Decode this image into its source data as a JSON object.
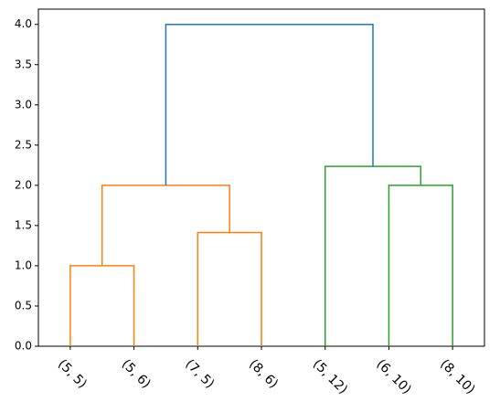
{
  "chart_data": {
    "type": "dendrogram",
    "categories": [
      "(5, 5)",
      "(5, 6)",
      "(7, 5)",
      "(8, 6)",
      "(5, 12)",
      "(6, 10)",
      "(8, 10)"
    ],
    "merges": [
      {
        "children": [
          0,
          1
        ],
        "height": 1.0,
        "color": "#ff7f0e"
      },
      {
        "children": [
          2,
          3
        ],
        "height": 1.414,
        "color": "#ff7f0e"
      },
      {
        "children": [
          7,
          8
        ],
        "height": 2.0,
        "color": "#ff7f0e"
      },
      {
        "children": [
          5,
          6
        ],
        "height": 2.0,
        "color": "#2ca02c"
      },
      {
        "children": [
          4,
          10
        ],
        "height": 2.236,
        "color": "#2ca02c"
      },
      {
        "children": [
          9,
          11
        ],
        "height": 4.0,
        "color": "#1f77b4"
      }
    ],
    "ylim": [
      0,
      4.19
    ],
    "yticks": [
      {
        "value": 0,
        "label": "0.0"
      },
      {
        "value": 0.5,
        "label": "0.5"
      },
      {
        "value": 1,
        "label": "1.0"
      },
      {
        "value": 1.5,
        "label": "1.5"
      },
      {
        "value": 2,
        "label": "2.0"
      },
      {
        "value": 2.5,
        "label": "2.5"
      },
      {
        "value": 3,
        "label": "3.0"
      },
      {
        "value": 3.5,
        "label": "3.5"
      },
      {
        "value": 4,
        "label": "4.0"
      }
    ]
  }
}
